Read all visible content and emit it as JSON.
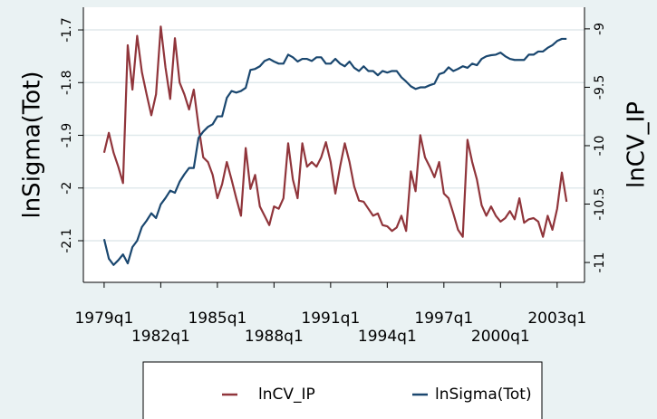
{
  "chart_data": {
    "type": "line",
    "x_axis_label": null,
    "y_label": "lnSigma(Tot)",
    "y2_label": "lnCV_IP",
    "x": [
      76,
      77,
      78,
      79,
      80,
      81,
      82,
      83,
      84,
      85,
      86,
      87,
      88,
      89,
      90,
      91,
      92,
      93,
      94,
      95,
      96,
      97,
      98,
      99,
      100,
      101,
      102,
      103,
      104,
      105,
      106,
      107,
      108,
      109,
      110,
      111,
      112,
      113,
      114,
      115,
      116,
      117,
      118,
      119,
      120,
      121,
      122,
      123,
      124,
      125,
      126,
      127,
      128,
      129,
      130,
      131,
      132,
      133,
      134,
      135,
      136,
      137,
      138,
      139,
      140,
      141,
      142,
      143,
      144,
      145,
      146,
      147,
      148,
      149,
      150,
      151,
      152,
      153,
      154,
      155,
      156,
      157,
      158,
      159,
      160,
      161,
      162,
      163,
      164,
      165,
      166,
      167,
      168,
      169,
      170,
      171,
      172,
      173,
      174
    ],
    "xlim": [
      71.6,
      177.8
    ],
    "xticks": [
      {
        "value": 76,
        "label": "1979q1"
      },
      {
        "value": 88,
        "label": "1982q1"
      },
      {
        "value": 100,
        "label": "1985q1"
      },
      {
        "value": 112,
        "label": "1988q1"
      },
      {
        "value": 124,
        "label": "1991q1"
      },
      {
        "value": 136,
        "label": "1994q1"
      },
      {
        "value": 148,
        "label": "1997q1"
      },
      {
        "value": 160,
        "label": "2000q1"
      },
      {
        "value": 172,
        "label": "2003q1"
      }
    ],
    "ylim": [
      -2.179,
      -1.657
    ],
    "yticks": [
      -1.7,
      -1.8,
      -1.9,
      -2,
      -2.1
    ],
    "y2lim": [
      -11.17,
      -8.815
    ],
    "y2ticks": [
      -9,
      -9.5,
      -10,
      -10.5,
      -11
    ],
    "grid": true,
    "legend": "bottom",
    "series": [
      {
        "name": "lnCV_IP",
        "color": "#90353b",
        "axis": "y2",
        "values": [
          -10.06,
          -9.89,
          -10.06,
          -10.18,
          -10.32,
          -9.14,
          -9.52,
          -9.06,
          -9.37,
          -9.56,
          -9.74,
          -9.56,
          -8.98,
          -9.33,
          -9.6,
          -9.08,
          -9.46,
          -9.56,
          -9.69,
          -9.52,
          -9.83,
          -10.1,
          -10.14,
          -10.25,
          -10.45,
          -10.33,
          -10.14,
          -10.29,
          -10.45,
          -10.6,
          -10.02,
          -10.37,
          -10.25,
          -10.52,
          -10.6,
          -10.68,
          -10.52,
          -10.54,
          -10.45,
          -9.98,
          -10.29,
          -10.45,
          -9.98,
          -10.18,
          -10.14,
          -10.18,
          -10.1,
          -9.97,
          -10.14,
          -10.41,
          -10.18,
          -9.98,
          -10.14,
          -10.35,
          -10.47,
          -10.48,
          -10.54,
          -10.6,
          -10.58,
          -10.68,
          -10.69,
          -10.73,
          -10.7,
          -10.6,
          -10.73,
          -10.22,
          -10.39,
          -9.91,
          -10.1,
          -10.18,
          -10.27,
          -10.14,
          -10.41,
          -10.45,
          -10.58,
          -10.72,
          -10.78,
          -9.95,
          -10.14,
          -10.29,
          -10.51,
          -10.6,
          -10.52,
          -10.6,
          -10.65,
          -10.62,
          -10.56,
          -10.63,
          -10.45,
          -10.66,
          -10.63,
          -10.62,
          -10.65,
          -10.78,
          -10.6,
          -10.72,
          -10.54,
          -10.23,
          -10.48
        ]
      },
      {
        "name": "lnSigma(Tot)",
        "color": "#1a476f",
        "values": [
          -2.097,
          -2.134,
          -2.146,
          -2.137,
          -2.126,
          -2.143,
          -2.112,
          -2.1,
          -2.074,
          -2.062,
          -2.048,
          -2.057,
          -2.031,
          -2.019,
          -2.005,
          -2.009,
          -1.988,
          -1.974,
          -1.962,
          -1.962,
          -1.905,
          -1.893,
          -1.884,
          -1.879,
          -1.864,
          -1.864,
          -1.829,
          -1.816,
          -1.819,
          -1.816,
          -1.81,
          -1.776,
          -1.774,
          -1.769,
          -1.759,
          -1.755,
          -1.76,
          -1.764,
          -1.764,
          -1.747,
          -1.752,
          -1.76,
          -1.755,
          -1.755,
          -1.759,
          -1.752,
          -1.752,
          -1.764,
          -1.764,
          -1.755,
          -1.764,
          -1.769,
          -1.76,
          -1.772,
          -1.778,
          -1.769,
          -1.778,
          -1.778,
          -1.786,
          -1.778,
          -1.781,
          -1.778,
          -1.778,
          -1.79,
          -1.798,
          -1.807,
          -1.812,
          -1.809,
          -1.809,
          -1.805,
          -1.802,
          -1.784,
          -1.781,
          -1.771,
          -1.778,
          -1.774,
          -1.769,
          -1.772,
          -1.764,
          -1.767,
          -1.755,
          -1.75,
          -1.748,
          -1.747,
          -1.743,
          -1.75,
          -1.755,
          -1.757,
          -1.757,
          -1.757,
          -1.747,
          -1.747,
          -1.741,
          -1.741,
          -1.734,
          -1.729,
          -1.721,
          -1.717,
          -1.717
        ]
      }
    ]
  }
}
